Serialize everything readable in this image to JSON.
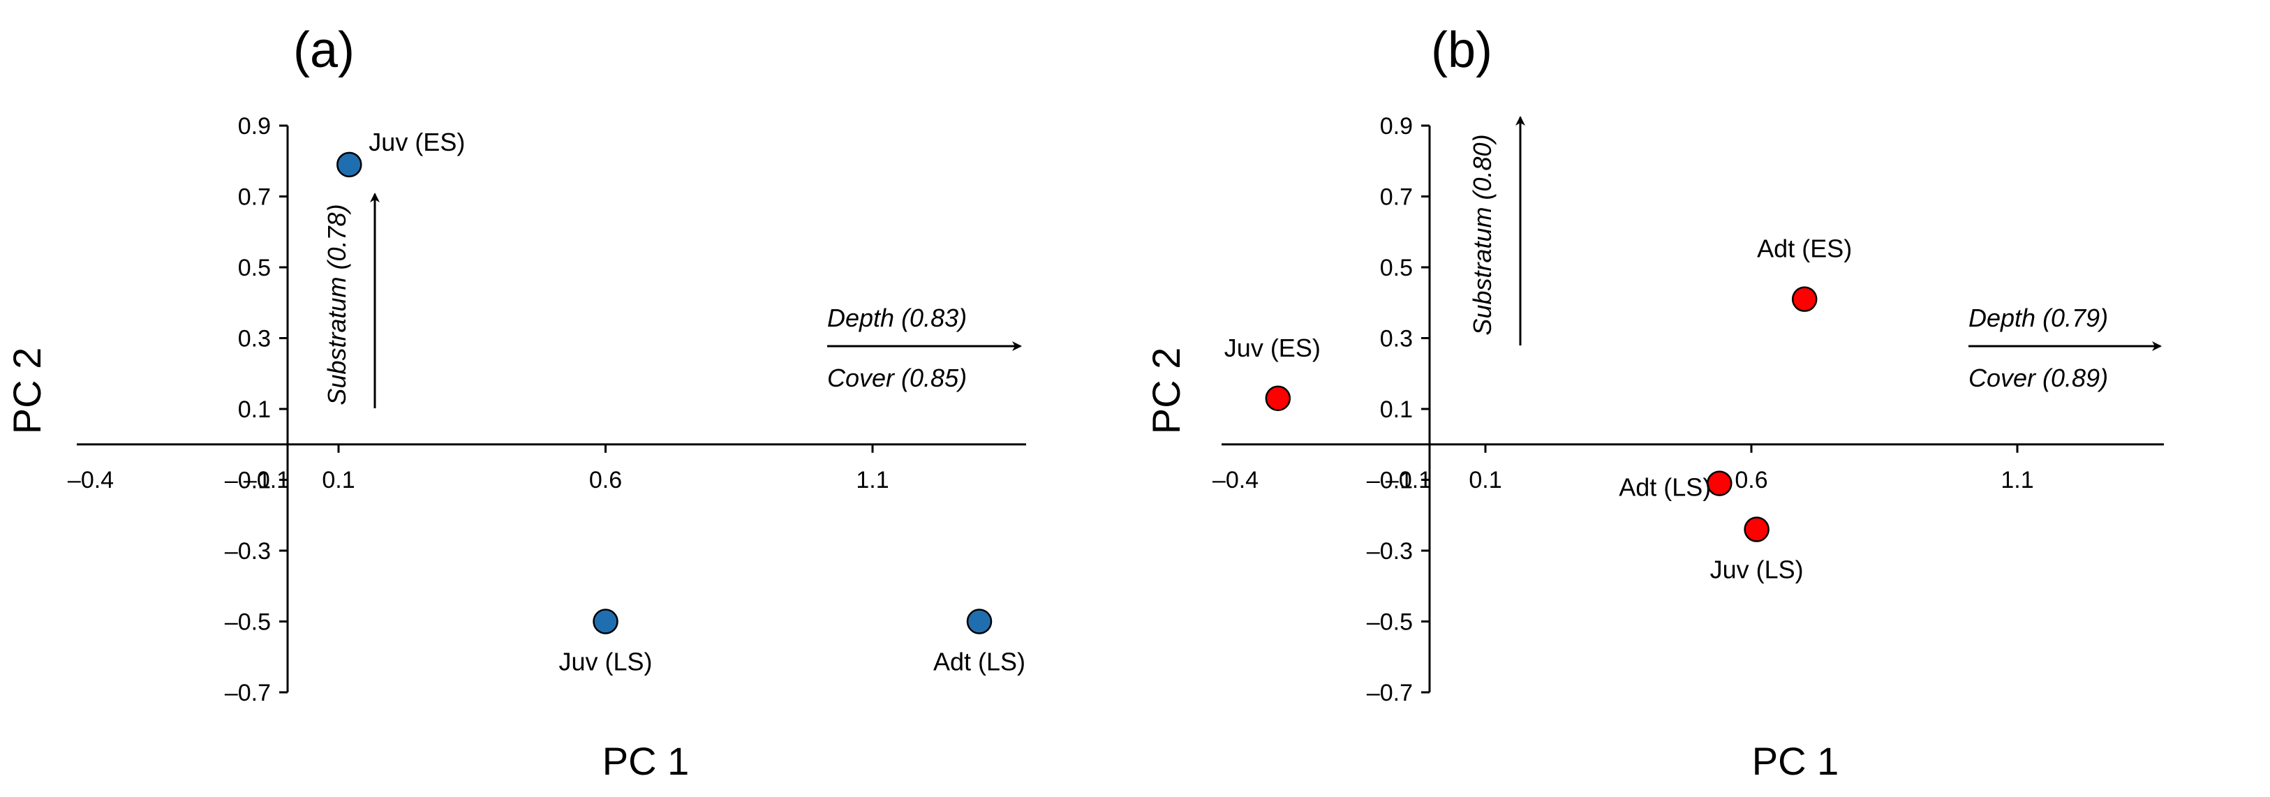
{
  "chart_data": [
    {
      "type": "scatter",
      "panel": "(a)",
      "xlabel": "PC 1",
      "ylabel": "PC 2",
      "xlim": [
        -0.4,
        1.35
      ],
      "ylim": [
        -0.7,
        0.9
      ],
      "x_ticks": [
        -0.4,
        -0.1,
        0.1,
        0.6,
        1.1
      ],
      "x_tick_labels": [
        "–0.4",
        "–0.1",
        "0.1",
        "0.6",
        "1.1"
      ],
      "y_ticks": [
        0.9,
        0.7,
        0.5,
        0.3,
        0.1,
        -0.1,
        -0.3,
        -0.5,
        -0.7
      ],
      "y_tick_labels": [
        "0.9",
        "0.7",
        "0.5",
        "0.3",
        "0.1",
        "–0.1",
        "–0.3",
        "–0.5",
        "–0.7"
      ],
      "point_color": "#1f6fb0",
      "points": [
        {
          "label": "Juv (ES)",
          "x": 0.12,
          "y": 0.79
        },
        {
          "label": "Juv (LS)",
          "x": 0.6,
          "y": -0.5
        },
        {
          "label": "Adt (LS)",
          "x": 1.3,
          "y": -0.5
        }
      ],
      "vectors": [
        {
          "name": "Substratum",
          "loading_label": "Substratum (0.78)",
          "direction": "vertical-up"
        },
        {
          "name": "Depth",
          "loading_label": "Depth (0.83)",
          "direction": "horizontal-right"
        },
        {
          "name": "Cover",
          "loading_label": "Cover (0.85)",
          "direction": "horizontal-right"
        }
      ],
      "grid": false
    },
    {
      "type": "scatter",
      "panel": "(b)",
      "xlabel": "PC 1",
      "ylabel": "PC 2",
      "xlim": [
        -0.4,
        1.35
      ],
      "ylim": [
        -0.7,
        0.9
      ],
      "x_ticks": [
        -0.4,
        -0.1,
        0.1,
        0.6,
        1.1
      ],
      "x_tick_labels": [
        "–0.4",
        "–0.1",
        "0.1",
        "0.6",
        "1.1"
      ],
      "y_ticks": [
        0.9,
        0.7,
        0.5,
        0.3,
        0.1,
        -0.1,
        -0.3,
        -0.5,
        -0.7
      ],
      "y_tick_labels": [
        "0.9",
        "0.7",
        "0.5",
        "0.3",
        "0.1",
        "–0.1",
        "–0.3",
        "–0.5",
        "–0.7"
      ],
      "point_color": "#ff0000",
      "points": [
        {
          "label": "Juv (ES)",
          "x": -0.29,
          "y": 0.13
        },
        {
          "label": "Adt (ES)",
          "x": 0.7,
          "y": 0.41
        },
        {
          "label": "Adt (LS)",
          "x": 0.54,
          "y": -0.11
        },
        {
          "label": "Juv (LS)",
          "x": 0.61,
          "y": -0.24
        }
      ],
      "vectors": [
        {
          "name": "Substratum",
          "loading_label": "Substratum (0.80)",
          "direction": "vertical-up"
        },
        {
          "name": "Depth",
          "loading_label": "Depth (0.79)",
          "direction": "horizontal-right"
        },
        {
          "name": "Cover",
          "loading_label": "Cover (0.89)",
          "direction": "horizontal-right"
        }
      ],
      "grid": false
    }
  ]
}
